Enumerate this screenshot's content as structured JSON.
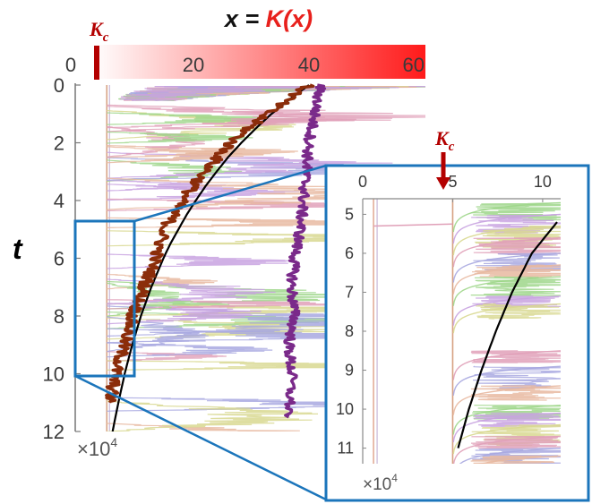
{
  "chart_data": [
    {
      "type": "line",
      "title_parts": [
        "x = ",
        "K(x)"
      ],
      "ylabel": "t",
      "y_multiplier_label": "×10",
      "y_multiplier_exp": "4",
      "colorbar_ticks": [
        "0",
        "20",
        "40",
        "60"
      ],
      "colorbar_range": [
        0,
        60
      ],
      "kc_label": "K",
      "kc_subscript": "c",
      "kc_value": 5,
      "xlim": [
        0,
        60
      ],
      "ylim": [
        0,
        12
      ],
      "y_ticks": [
        "0",
        "2",
        "4",
        "6",
        "8",
        "10",
        "12"
      ],
      "colors": {
        "title_black": "#111111",
        "title_red": "#e8201c",
        "kc_marker": "#b30000",
        "zoom_box": "#1b75bb",
        "theory_curve": "#000000",
        "mean_trajectory": "#8b2d0a",
        "purple_trajectory": "#7a2a8a",
        "colorbar_high": "#ff1a1a"
      },
      "series": [
        {
          "values_t": [
            0,
            0.5,
            1,
            1.5,
            2,
            2.5,
            3,
            3.5,
            4,
            4.5,
            5,
            5.5,
            6,
            7,
            8,
            9,
            10,
            11,
            12
          ],
          "values_x": [
            40,
            36.6,
            33.5,
            30.8,
            28.3,
            26.0,
            24.0,
            22.1,
            20.4,
            18.8,
            17.4,
            16.0,
            14.8,
            12.7,
            10.9,
            9.4,
            8.1,
            7.0,
            6.0
          ]
        },
        {
          "values_t": [
            0,
            1,
            2,
            3,
            4,
            5,
            6,
            7,
            8,
            9,
            10,
            11
          ],
          "values_x": [
            40,
            32.5,
            26.5,
            22,
            18,
            15,
            13.5,
            11.5,
            9.5,
            8,
            6.5,
            5.5
          ]
        },
        {
          "values_t": [
            0,
            1,
            2,
            3,
            4,
            5,
            6,
            7,
            8,
            9,
            10,
            11.5
          ],
          "values_x": [
            42,
            41,
            40,
            39.5,
            39,
            38.5,
            37.5,
            37,
            37.5,
            36.5,
            37,
            36.5
          ]
        }
      ]
    },
    {
      "type": "line",
      "xlim": [
        0,
        11
      ],
      "ylim": [
        4.6,
        11.4
      ],
      "x_ticks": [
        "0",
        "5",
        "10"
      ],
      "x_tick_values": [
        0,
        5,
        10
      ],
      "y_ticks": [
        "5",
        "6",
        "7",
        "8",
        "9",
        "10",
        "11"
      ],
      "y_tick_values": [
        5,
        6,
        7,
        8,
        9,
        10,
        11
      ],
      "y_multiplier_label": "×10",
      "y_multiplier_exp": "4",
      "kc_label": "K",
      "kc_subscript": "c",
      "kc_value": 5,
      "series": [
        {
          "values_t": [
            5.2,
            6,
            7,
            8,
            9,
            10,
            11
          ],
          "values_x": [
            10.8,
            9.4,
            8.3,
            7.4,
            6.6,
            5.9,
            5.3
          ]
        }
      ]
    }
  ]
}
